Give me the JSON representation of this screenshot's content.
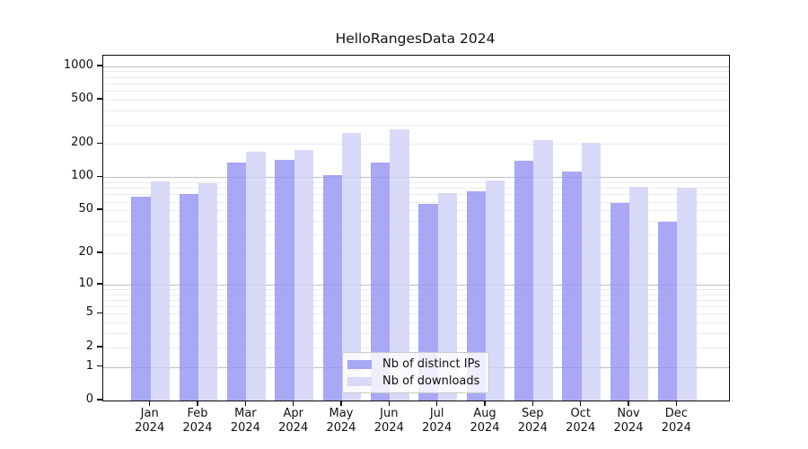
{
  "figure": {
    "title": "HelloRangesData 2024"
  },
  "chart_data": {
    "type": "bar",
    "title": "HelloRangesData 2024",
    "categories": [
      "Jan 2024",
      "Feb 2024",
      "Mar 2024",
      "Apr 2024",
      "May 2024",
      "Jun 2024",
      "Jul 2024",
      "Aug 2024",
      "Sep 2024",
      "Oct 2024",
      "Nov 2024",
      "Dec 2024"
    ],
    "series": [
      {
        "name": "Nb of distinct IPs",
        "color": "#9292f2",
        "values": [
          67,
          71,
          137,
          143,
          105,
          136,
          57,
          75,
          142,
          113,
          58,
          39
        ]
      },
      {
        "name": "Nb of downloads",
        "color": "#d0d0f6",
        "values": [
          91,
          88,
          171,
          176,
          252,
          273,
          72,
          93,
          218,
          205,
          82,
          81
        ]
      }
    ],
    "xlabel": "",
    "ylabel": "",
    "yscale": "symlog",
    "yticks": [
      0,
      1,
      2,
      5,
      10,
      20,
      50,
      100,
      200,
      500,
      1000
    ],
    "ylim": [
      0,
      1244
    ],
    "grid": true,
    "legend_position": "lower center"
  }
}
